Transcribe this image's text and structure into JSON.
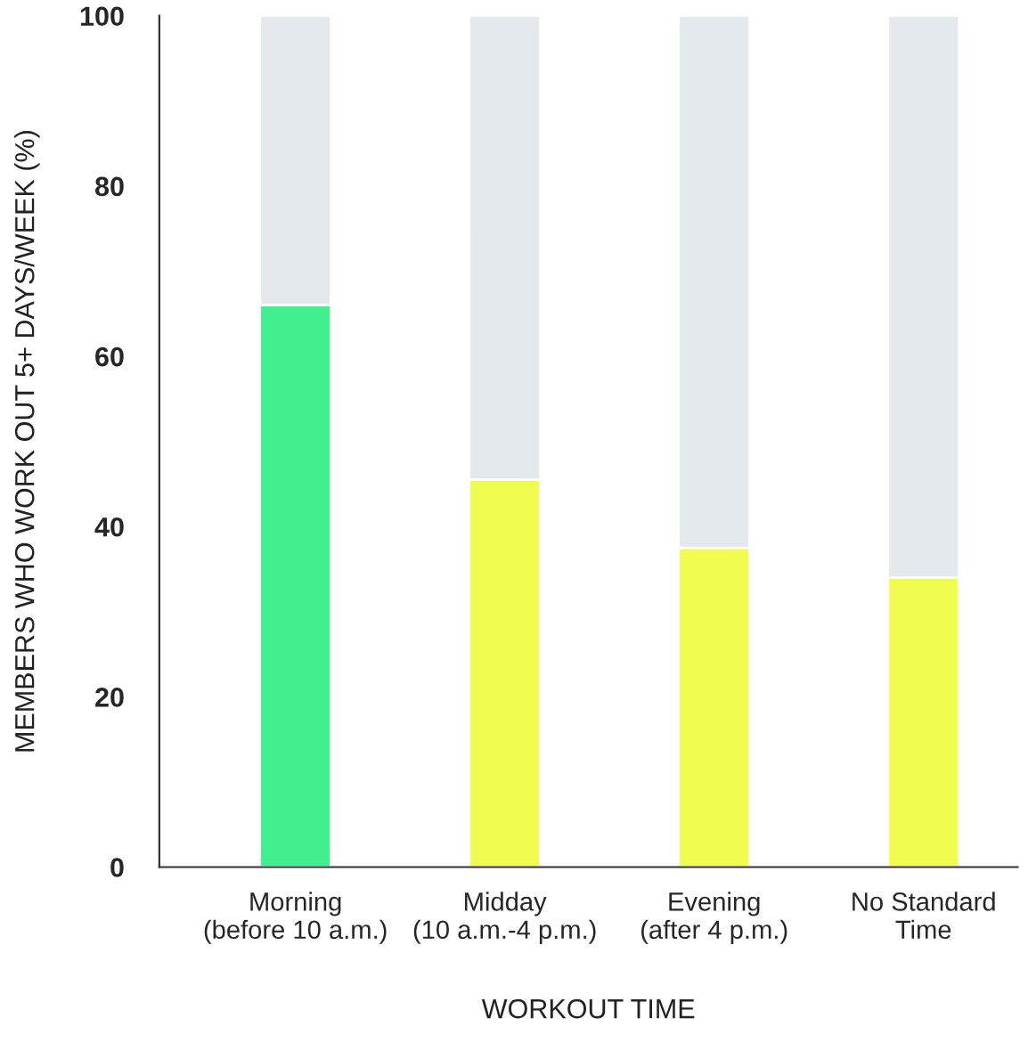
{
  "chart_data": {
    "type": "bar",
    "stacked": true,
    "xlabel": "WORKOUT TIME",
    "ylabel": "MEMBERS WHO WORK OUT 5+ DAYS/WEEK (%)",
    "categories": [
      "Morning\n(before 10 a.m.)",
      "Midday\n(10 a.m.-4 p.m.)",
      "Evening\n(after 4 p.m.)",
      "No Standard\nTime"
    ],
    "series": [
      {
        "colors": [
          "#42ef8e",
          "#f0fc50",
          "#f0fc50",
          "#f0fc50"
        ],
        "values": [
          66,
          45.5,
          37.5,
          34
        ]
      },
      {
        "color": "#e4e9ed",
        "values": [
          34,
          54.5,
          62.5,
          66
        ]
      }
    ],
    "ylim": [
      0,
      100
    ],
    "yticks": [
      0,
      20,
      40,
      60,
      80,
      100
    ],
    "grid": false,
    "legend": false
  }
}
